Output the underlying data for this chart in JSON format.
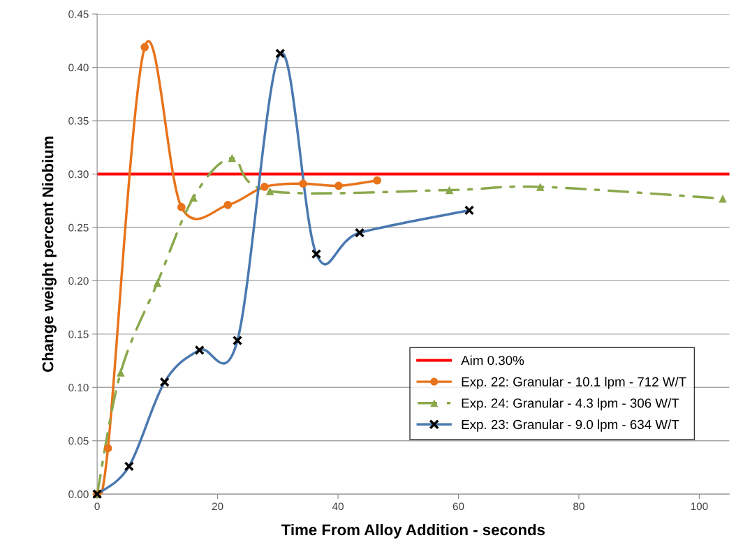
{
  "chart_data": {
    "type": "line",
    "xlabel": "Time From Alloy Addition - seconds",
    "ylabel": "Change weight percent Niobium",
    "xlim": [
      0,
      105
    ],
    "xticks": [
      0,
      20,
      40,
      60,
      80,
      100
    ],
    "ylim": [
      0,
      0.45
    ],
    "yticks": [
      {
        "value": 0,
        "label": "0.00"
      },
      {
        "value": 0.05,
        "label": "0.05"
      },
      {
        "value": 0.1,
        "label": "0.10"
      },
      {
        "value": 0.15,
        "label": "0.15"
      },
      {
        "value": 0.2,
        "label": "0.20"
      },
      {
        "value": 0.25,
        "label": "0.25"
      },
      {
        "value": 0.3,
        "label": "0.30"
      },
      {
        "value": 0.35,
        "label": "0.35"
      },
      {
        "value": 0.4,
        "label": "0.40"
      },
      {
        "value": 0.45,
        "label": "0.45"
      }
    ],
    "grid": "y",
    "legend": "bottom right",
    "ref_lines": [
      {
        "axis": "y",
        "value": 0.3,
        "label": "Aim 0.30%",
        "color": "#ff0000",
        "line_style": "solid"
      }
    ],
    "series": [
      {
        "name": "Exp. 22: Granular - 10.1 lpm - 712 W/T",
        "color": "#e8731a",
        "marker": "circle",
        "line_style": "solid",
        "x": [
          0,
          1.8,
          7.9,
          14.0,
          21.7,
          27.8,
          34.2,
          40.1,
          46.5
        ],
        "values": [
          0,
          0.043,
          0.419,
          0.269,
          0.271,
          0.288,
          0.291,
          0.289,
          0.294
        ]
      },
      {
        "name": "Exp. 24: Granular - 4.3 lpm - 306 W/T",
        "color": "#8aa84b",
        "marker": "triangle",
        "line_style": "dashdot",
        "x": [
          0,
          3.9,
          10.0,
          16.0,
          22.4,
          28.7,
          58.5,
          73.6,
          103.9
        ],
        "values": [
          0,
          0.114,
          0.198,
          0.278,
          0.315,
          0.284,
          0.285,
          0.288,
          0.277
        ]
      },
      {
        "name": "Exp. 23: Granular - 9.0 lpm - 634 W/T",
        "color": "#4a78b0",
        "marker": "cross",
        "line_style": "solid",
        "colors": [
          "#000000",
          "#000000",
          "#000000",
          "#000000",
          "#000000",
          "#000000",
          "#000000",
          "#000000",
          "#000000"
        ],
        "x": [
          0,
          5.3,
          11.2,
          17.0,
          23.3,
          30.4,
          36.4,
          43.6,
          61.8
        ],
        "values": [
          0,
          0.026,
          0.105,
          0.135,
          0.144,
          0.413,
          0.225,
          0.245,
          0.266
        ]
      }
    ]
  }
}
